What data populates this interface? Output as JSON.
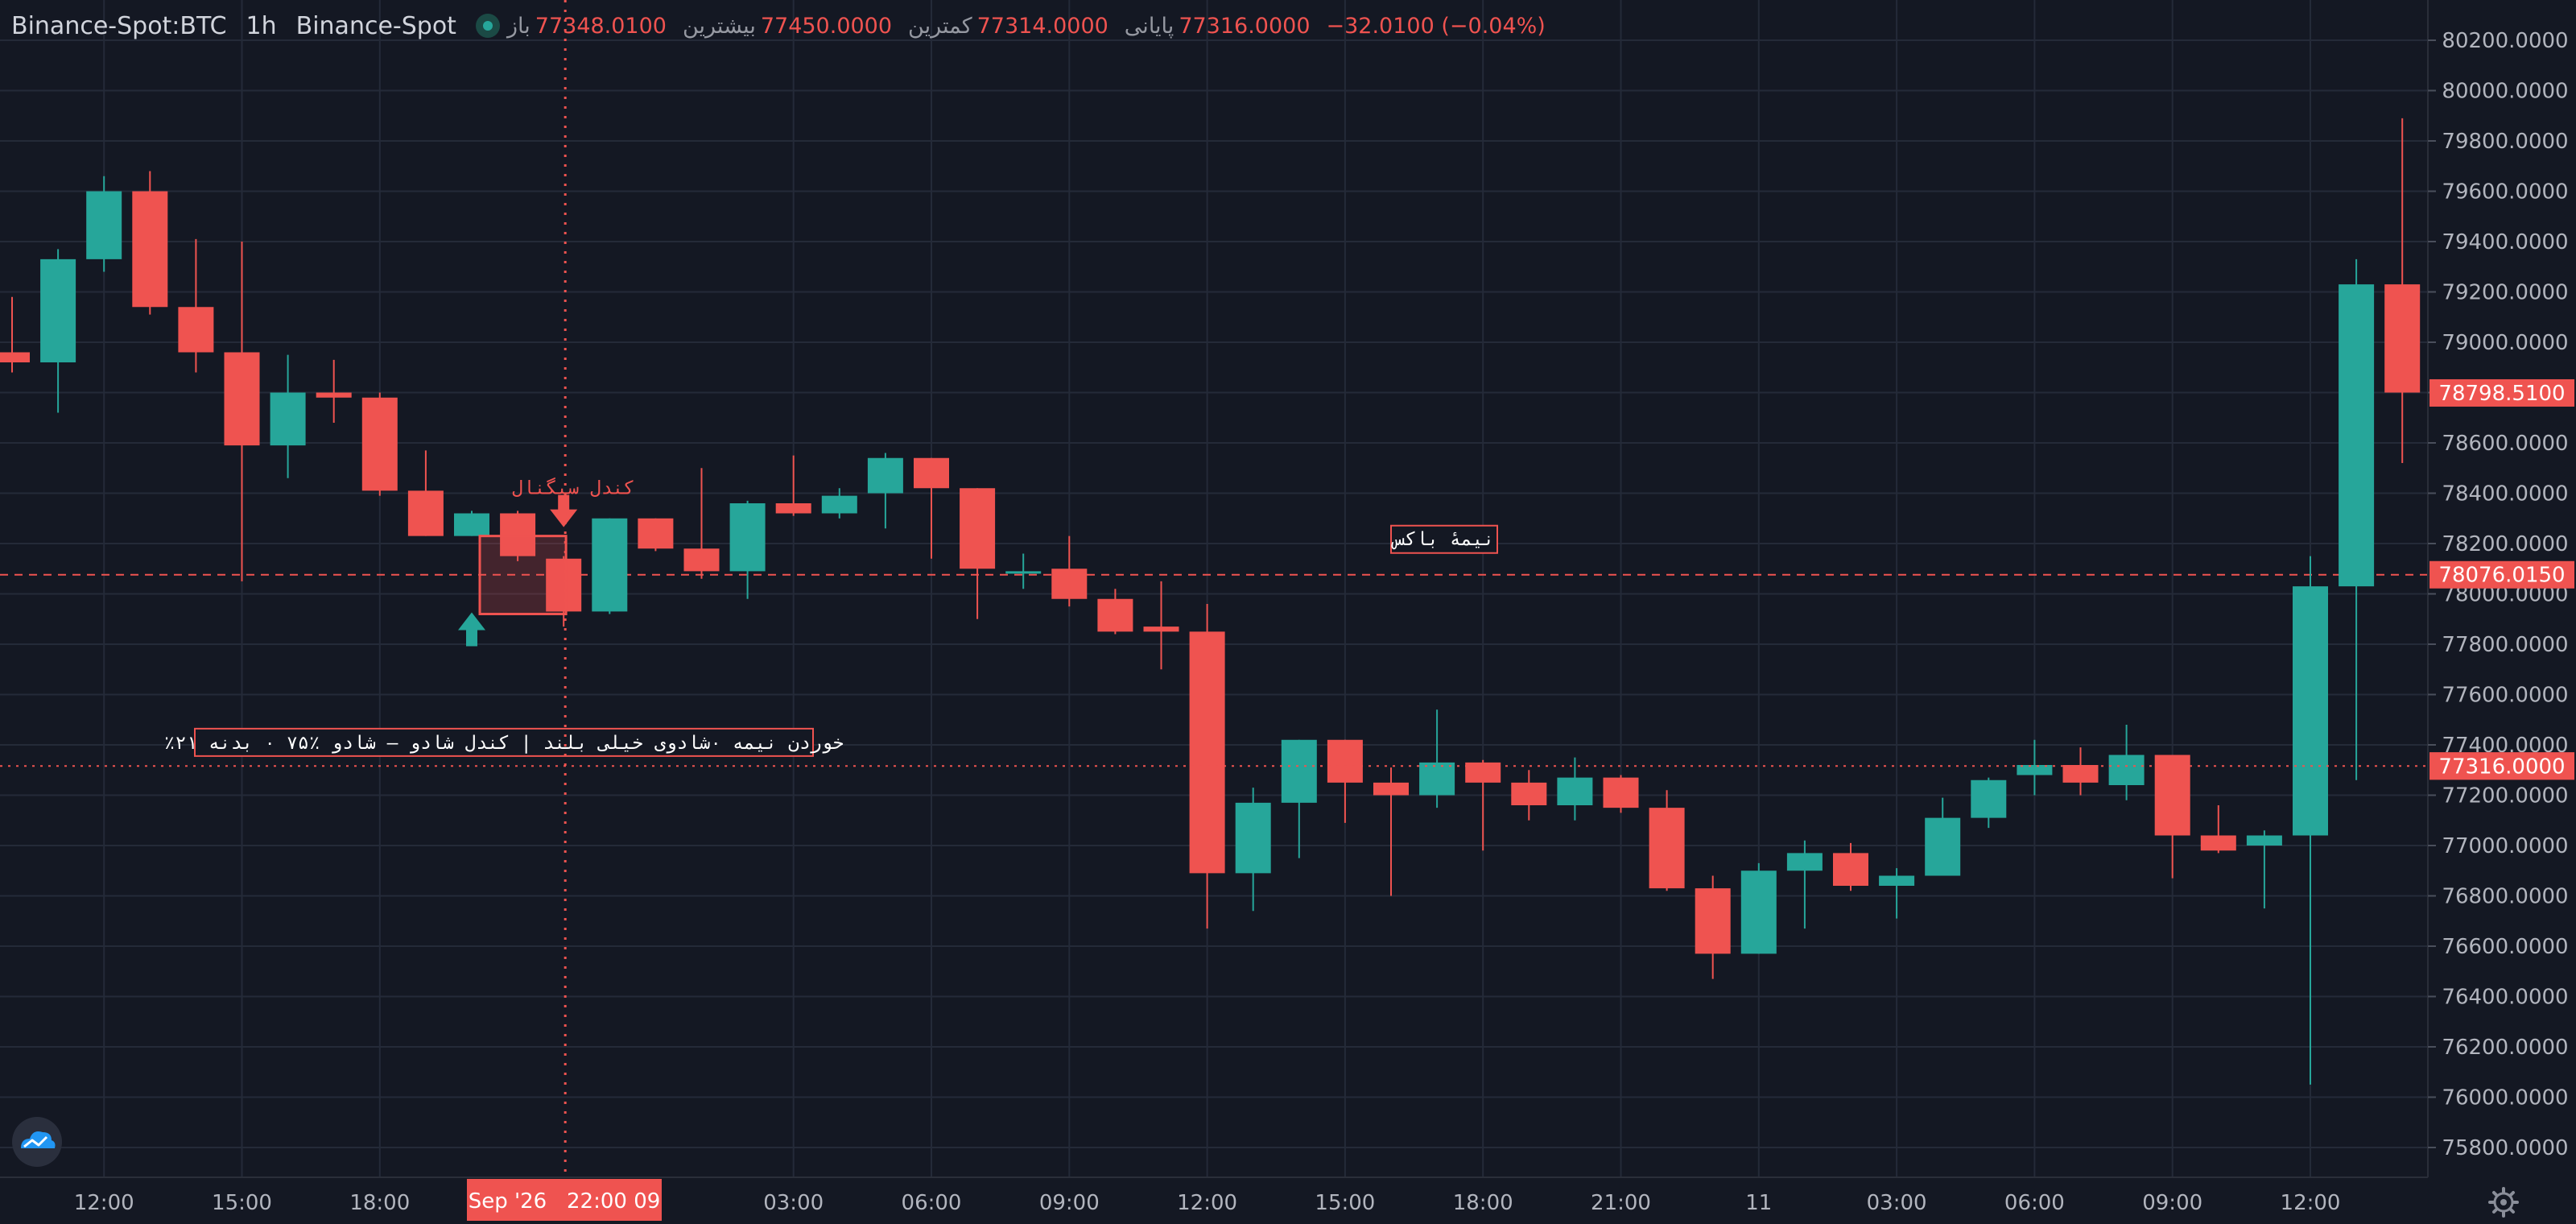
{
  "header": {
    "symbol": "Binance-Spot:BTC",
    "interval": "1h",
    "exchange": "Binance-Spot",
    "open_label": "باز",
    "open_value": "77348.0100",
    "high_label": "بیشترین",
    "high_value": "77450.0000",
    "low_label": "کمترین",
    "low_value": "77314.0000",
    "close_label": "پایانی",
    "close_value": "77316.0000",
    "change_value": "−32.0100 (−0.04%)"
  },
  "colors": {
    "background": "#141823",
    "up": "#26a69a",
    "down": "#ef5350",
    "grid": "#242a38",
    "axis_text": "#b2b5be"
  },
  "crosshair": {
    "time_label": "Sep '26   22:00 09",
    "price_label": "77316.0000"
  },
  "price_markers": [
    {
      "value": 78798.51,
      "label": "78798.5100"
    },
    {
      "value": 78076.015,
      "label": "78076.0150"
    },
    {
      "value": 77316.0,
      "label": "77316.0000"
    }
  ],
  "annotations": {
    "signal_candle": "کندل سیگنال",
    "half_box": "نیمهٔ باکس",
    "info_box": "٪خوردن نیمه ۰شادوی خیلی بلند | کندل شادو — شادو ٪۷۵ ۰ بدنه ۲۱"
  },
  "icons": {
    "logo": "tradingview-cloud-icon",
    "settings": "gear-icon",
    "status": "status-dot-icon"
  },
  "chart_data": {
    "type": "candlestick",
    "interval": "1h",
    "y_ticks": [
      75800,
      76000,
      76200,
      76400,
      76600,
      76800,
      77000,
      77200,
      77400,
      77600,
      77800,
      78000,
      78200,
      78400,
      78600,
      78800,
      79000,
      79200,
      79400,
      79600,
      79800,
      80000,
      80200
    ],
    "y_tick_labels": [
      "75800.0000",
      "76000.0000",
      "76200.0000",
      "76400.0000",
      "76600.0000",
      "76800.0000",
      "77000.0000",
      "77200.0000",
      "77400.0000",
      "77600.0000",
      "77800.0000",
      "78000.0000",
      "78200.0000",
      "78400.0000",
      "78600.0000",
      "78800.0000",
      "79000.0000",
      "79200.0000",
      "79400.0000",
      "79600.0000",
      "79800.0000",
      "80000.0000",
      "80200.0000"
    ],
    "x_ticks": [
      {
        "index": 2,
        "label": "12:00"
      },
      {
        "index": 5,
        "label": "15:00"
      },
      {
        "index": 8,
        "label": "18:00"
      },
      {
        "index": 17,
        "label": "03:00"
      },
      {
        "index": 20,
        "label": "06:00"
      },
      {
        "index": 23,
        "label": "09:00"
      },
      {
        "index": 26,
        "label": "12:00"
      },
      {
        "index": 29,
        "label": "15:00"
      },
      {
        "index": 32,
        "label": "18:00"
      },
      {
        "index": 35,
        "label": "21:00"
      },
      {
        "index": 38,
        "label": "11"
      },
      {
        "index": 41,
        "label": "03:00"
      },
      {
        "index": 44,
        "label": "06:00"
      },
      {
        "index": 47,
        "label": "09:00"
      },
      {
        "index": 50,
        "label": "12:00"
      }
    ],
    "candles": [
      {
        "open": 78960,
        "high": 79180,
        "low": 78880,
        "close": 78920
      },
      {
        "open": 78920,
        "high": 79370,
        "low": 78720,
        "close": 79330
      },
      {
        "open": 79330,
        "high": 79660,
        "low": 79280,
        "close": 79600
      },
      {
        "open": 79600,
        "high": 79680,
        "low": 79110,
        "close": 79140
      },
      {
        "open": 79140,
        "high": 79410,
        "low": 78880,
        "close": 78960
      },
      {
        "open": 78960,
        "high": 79400,
        "low": 78050,
        "close": 78590
      },
      {
        "open": 78590,
        "high": 78950,
        "low": 78460,
        "close": 78800
      },
      {
        "open": 78800,
        "high": 78930,
        "low": 78680,
        "close": 78780
      },
      {
        "open": 78780,
        "high": 78800,
        "low": 78390,
        "close": 78410
      },
      {
        "open": 78410,
        "high": 78570,
        "low": 78230,
        "close": 78230
      },
      {
        "open": 78230,
        "high": 78330,
        "low": 78230,
        "close": 78320
      },
      {
        "open": 78320,
        "high": 78330,
        "low": 78130,
        "close": 78150
      },
      {
        "open": 78140,
        "high": 78150,
        "low": 77870,
        "close": 77930
      },
      {
        "open": 77930,
        "high": 78300,
        "low": 77920,
        "close": 78300
      },
      {
        "open": 78300,
        "high": 78300,
        "low": 78170,
        "close": 78180
      },
      {
        "open": 78180,
        "high": 78500,
        "low": 78060,
        "close": 78090
      },
      {
        "open": 78090,
        "high": 78370,
        "low": 77980,
        "close": 78360
      },
      {
        "open": 78360,
        "high": 78550,
        "low": 78310,
        "close": 78320
      },
      {
        "open": 78320,
        "high": 78420,
        "low": 78300,
        "close": 78390
      },
      {
        "open": 78400,
        "high": 78560,
        "low": 78260,
        "close": 78540
      },
      {
        "open": 78540,
        "high": 78540,
        "low": 78140,
        "close": 78420
      },
      {
        "open": 78420,
        "high": 78420,
        "low": 77900,
        "close": 78100
      },
      {
        "open": 78090,
        "high": 78160,
        "low": 78020,
        "close": 78090
      },
      {
        "open": 78100,
        "high": 78230,
        "low": 77950,
        "close": 77980
      },
      {
        "open": 77980,
        "high": 78020,
        "low": 77840,
        "close": 77850
      },
      {
        "open": 77870,
        "high": 78050,
        "low": 77700,
        "close": 77850
      },
      {
        "open": 77850,
        "high": 77960,
        "low": 76670,
        "close": 76890
      },
      {
        "open": 76890,
        "high": 77230,
        "low": 76740,
        "close": 77170
      },
      {
        "open": 77170,
        "high": 77420,
        "low": 76950,
        "close": 77420
      },
      {
        "open": 77420,
        "high": 77420,
        "low": 77090,
        "close": 77250
      },
      {
        "open": 77250,
        "high": 77310,
        "low": 76800,
        "close": 77200
      },
      {
        "open": 77200,
        "high": 77540,
        "low": 77150,
        "close": 77330
      },
      {
        "open": 77330,
        "high": 77340,
        "low": 76980,
        "close": 77250
      },
      {
        "open": 77250,
        "high": 77300,
        "low": 77100,
        "close": 77160
      },
      {
        "open": 77160,
        "high": 77350,
        "low": 77100,
        "close": 77270
      },
      {
        "open": 77270,
        "high": 77280,
        "low": 77130,
        "close": 77150
      },
      {
        "open": 77150,
        "high": 77220,
        "low": 76820,
        "close": 76830
      },
      {
        "open": 76830,
        "high": 76880,
        "low": 76470,
        "close": 76570
      },
      {
        "open": 76570,
        "high": 76930,
        "low": 76570,
        "close": 76900
      },
      {
        "open": 76900,
        "high": 77020,
        "low": 76670,
        "close": 76970
      },
      {
        "open": 76970,
        "high": 77010,
        "low": 76820,
        "close": 76840
      },
      {
        "open": 76840,
        "high": 76910,
        "low": 76710,
        "close": 76880
      },
      {
        "open": 76880,
        "high": 77190,
        "low": 76880,
        "close": 77110
      },
      {
        "open": 77110,
        "high": 77270,
        "low": 77070,
        "close": 77260
      },
      {
        "open": 77280,
        "high": 77420,
        "low": 77200,
        "close": 77320
      },
      {
        "open": 77320,
        "high": 77390,
        "low": 77200,
        "close": 77250
      },
      {
        "open": 77240,
        "high": 77480,
        "low": 77180,
        "close": 77360
      },
      {
        "open": 77360,
        "high": 77360,
        "low": 76870,
        "close": 77040
      },
      {
        "open": 77040,
        "high": 77160,
        "low": 76970,
        "close": 76980
      },
      {
        "open": 77000,
        "high": 77060,
        "low": 76750,
        "close": 77040
      },
      {
        "open": 77040,
        "high": 78150,
        "low": 76050,
        "close": 78030
      },
      {
        "open": 78030,
        "high": 79330,
        "low": 77260,
        "close": 79230
      },
      {
        "open": 79230,
        "high": 79890,
        "low": 78520,
        "close": 78800
      }
    ]
  }
}
